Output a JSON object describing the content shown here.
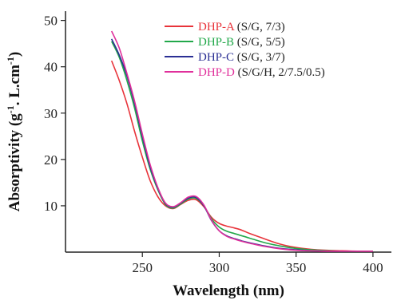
{
  "chart_data": {
    "type": "line",
    "title": "",
    "xlabel": "Wavelength (nm)",
    "ylabel_parts": [
      "Absorptivity (g",
      "-1",
      ". L.cm",
      "-1",
      ")"
    ],
    "xlim": [
      200,
      412
    ],
    "ylim": [
      0,
      52
    ],
    "xticks": [
      250,
      300,
      350,
      400
    ],
    "yticks": [
      10,
      20,
      30,
      40,
      50
    ],
    "grid": false,
    "legend_position": "top-right",
    "series": [
      {
        "name": "DHP-A",
        "desc": "(S/G, 7/3)",
        "color": "#e8333a",
        "x": [
          230,
          235,
          240,
          245,
          250,
          255,
          260,
          265,
          270,
          275,
          280,
          285,
          290,
          295,
          300,
          305,
          310,
          315,
          320,
          330,
          340,
          350,
          360,
          370,
          380,
          390,
          400
        ],
        "y": [
          41.3,
          37,
          32,
          26,
          20.5,
          15.5,
          12,
          10,
          9.4,
          10.3,
          11.2,
          11.3,
          9.8,
          7.5,
          6.2,
          5.6,
          5.2,
          4.7,
          4.0,
          2.8,
          1.7,
          1.0,
          0.6,
          0.4,
          0.3,
          0.2,
          0.2
        ]
      },
      {
        "name": "DHP-B",
        "desc": "(S/G, 5/5)",
        "color": "#22a84a",
        "x": [
          230,
          235,
          240,
          245,
          250,
          255,
          260,
          265,
          270,
          275,
          280,
          285,
          290,
          295,
          300,
          305,
          310,
          315,
          320,
          330,
          340,
          350,
          360,
          370,
          380,
          390,
          400
        ],
        "y": [
          45.5,
          42,
          37,
          31,
          24,
          18,
          13.5,
          10.3,
          9.5,
          10.4,
          11.5,
          11.6,
          10,
          7.2,
          5.4,
          4.5,
          4.0,
          3.5,
          3.0,
          2.0,
          1.3,
          0.8,
          0.5,
          0.3,
          0.2,
          0.2,
          0.2
        ]
      },
      {
        "name": "DHP-C",
        "desc": "(S/G, 3/7)",
        "color": "#2b2f94",
        "x": [
          230,
          235,
          240,
          245,
          250,
          255,
          260,
          265,
          270,
          275,
          280,
          285,
          290,
          295,
          300,
          305,
          310,
          315,
          320,
          330,
          340,
          350,
          360,
          370,
          380,
          390,
          400
        ],
        "y": [
          46,
          42.5,
          38,
          32,
          25,
          18.5,
          13.8,
          10.5,
          9.7,
          10.6,
          11.7,
          11.8,
          10,
          6.8,
          4.6,
          3.5,
          2.9,
          2.4,
          2.0,
          1.3,
          0.8,
          0.5,
          0.3,
          0.2,
          0.2,
          0.2,
          0.2
        ]
      },
      {
        "name": "DHP-D",
        "desc": "(S/G/H, 2/7.5/0.5)",
        "color": "#e0309b",
        "x": [
          230,
          235,
          240,
          245,
          250,
          255,
          260,
          265,
          270,
          275,
          280,
          285,
          290,
          295,
          300,
          305,
          310,
          315,
          320,
          330,
          340,
          350,
          360,
          370,
          380,
          390,
          400
        ],
        "y": [
          47.7,
          44,
          38.5,
          32.5,
          25.5,
          19,
          14,
          10.6,
          9.8,
          10.7,
          11.9,
          12.0,
          10.2,
          6.9,
          4.6,
          3.4,
          2.8,
          2.3,
          1.9,
          1.2,
          0.7,
          0.4,
          0.3,
          0.2,
          0.2,
          0.2,
          0.2
        ]
      }
    ]
  }
}
